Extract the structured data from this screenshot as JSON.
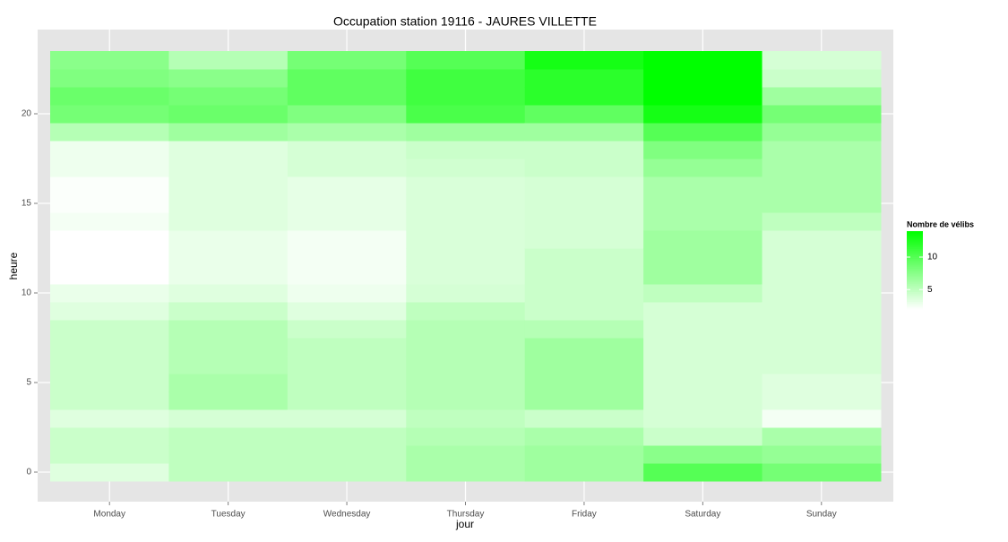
{
  "chart_data": {
    "type": "heatmap",
    "title": "Occupation station 19116 - JAURES VILLETTE",
    "xlabel": "jour",
    "ylabel": "heure",
    "categories": [
      "Monday",
      "Tuesday",
      "Wednesday",
      "Thursday",
      "Friday",
      "Saturday",
      "Sunday"
    ],
    "values": [
      [
        3.5,
        4.5,
        4.5,
        3.5,
        4.5,
        4.5,
        4.5,
        4.5,
        4.5,
        3.5,
        3,
        2,
        2,
        2,
        2.5,
        2.2,
        2.2,
        2.8,
        2.8,
        5.5,
        8.5,
        9,
        8,
        7.5
      ],
      [
        5,
        5,
        5,
        4,
        6,
        6,
        5.5,
        5.5,
        5.5,
        4.5,
        3.5,
        3,
        3,
        3,
        3.5,
        3.5,
        3.5,
        3.5,
        3.5,
        6.5,
        9,
        8.5,
        7.5,
        5.5
      ],
      [
        5,
        5,
        5,
        4,
        5,
        5,
        5,
        5,
        4.5,
        3.5,
        2.8,
        2.5,
        2.5,
        2.5,
        3.2,
        3.2,
        3.2,
        4,
        4,
        6,
        8,
        9.5,
        9.5,
        8.5
      ],
      [
        6,
        6,
        5.5,
        5,
        5.5,
        5.5,
        5.5,
        5.5,
        5.5,
        5,
        4,
        3.8,
        3.8,
        3.8,
        3.8,
        3.8,
        3.8,
        4.2,
        4.5,
        6.5,
        10.5,
        11,
        11,
        10
      ],
      [
        6.5,
        6.5,
        6,
        4.5,
        6.5,
        6.5,
        6.5,
        6.5,
        5.5,
        4.5,
        4.5,
        4.5,
        4.5,
        4,
        4,
        4,
        4,
        4.5,
        4.5,
        6.5,
        9.5,
        12,
        12,
        13
      ],
      [
        10,
        7.5,
        4.5,
        4,
        4,
        4,
        4,
        4,
        4,
        4,
        5,
        6.5,
        6.5,
        6.5,
        6,
        6,
        6,
        7,
        8,
        10,
        13,
        14,
        14,
        14
      ],
      [
        8.5,
        7,
        6,
        2.5,
        3.5,
        3.5,
        4,
        4,
        4,
        4,
        4,
        4,
        4,
        4,
        5,
        6,
        6,
        6,
        6,
        7,
        8.5,
        6.5,
        4.5,
        4
      ]
    ],
    "ylim": [
      -1.65,
      24.7
    ],
    "yticks": [
      0,
      5,
      10,
      15,
      20
    ],
    "legend_title": "Nombre de vélibs",
    "low_color": "#ffffff",
    "high_color": "#00ff00",
    "colorlim": [
      2,
      14
    ],
    "colorticks": [
      5,
      10
    ],
    "grid": true
  }
}
